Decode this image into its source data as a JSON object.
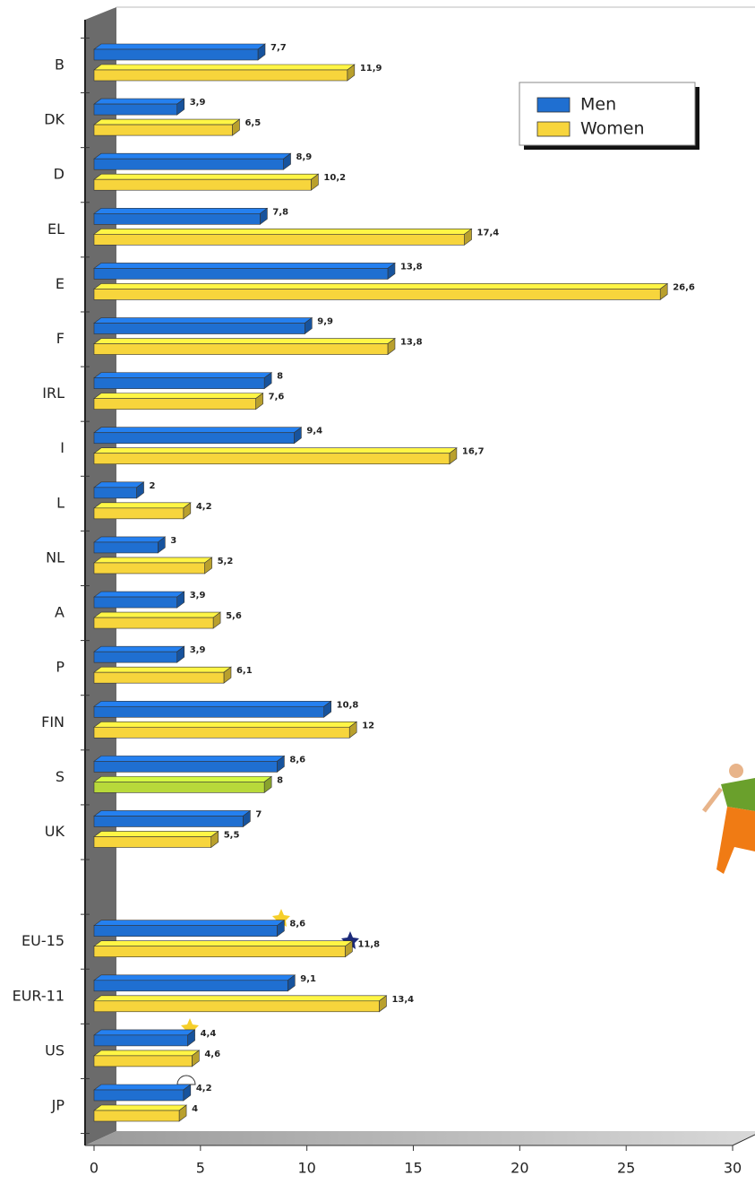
{
  "chart_data": {
    "type": "bar3d_horizontal",
    "categories": [
      "B",
      "DK",
      "D",
      "EL",
      "E",
      "F",
      "IRL",
      "I",
      "L",
      "NL",
      "A",
      "P",
      "FIN",
      "S",
      "UK",
      null,
      "EU-15",
      "EUR-11",
      "US",
      "JP"
    ],
    "series": [
      {
        "name": "Men",
        "color": "#1f6fd1",
        "values": [
          7.7,
          3.9,
          8.9,
          7.8,
          13.8,
          9.9,
          8,
          9.4,
          2,
          3,
          3.9,
          3.9,
          10.8,
          8.6,
          7,
          null,
          8.6,
          9.1,
          4.4,
          4.2
        ],
        "value_labels": [
          "7,7",
          "3,9",
          "8,9",
          "7,8",
          "13,8",
          "9,9",
          "8",
          "9,4",
          "2",
          "3",
          "3,9",
          "3,9",
          "10,8",
          "8,6",
          "7",
          null,
          "8,6",
          "9,1",
          "4,4",
          "4,2"
        ]
      },
      {
        "name": "Women",
        "color": "#f7d53c",
        "values": [
          11.9,
          6.5,
          10.2,
          17.4,
          26.6,
          13.8,
          7.6,
          16.7,
          4.2,
          5.2,
          5.6,
          6.1,
          12,
          8,
          5.5,
          null,
          11.8,
          13.4,
          4.6,
          4
        ],
        "value_labels": [
          "11,9",
          "6,5",
          "10,2",
          "17,4",
          "26,6",
          "13,8",
          "7,6",
          "16,7",
          "4,2",
          "5,2",
          "5,6",
          "6,1",
          "12",
          "8",
          "5,5",
          null,
          "11,8",
          "13,4",
          "4,6",
          "4"
        ],
        "color_overrides": [
          {
            "index": 13,
            "color": "#b8d93a"
          }
        ]
      }
    ],
    "xlim": [
      0,
      30
    ],
    "xticks": [
      0,
      5,
      10,
      15,
      20,
      25,
      30
    ],
    "legend": "top-right"
  }
}
